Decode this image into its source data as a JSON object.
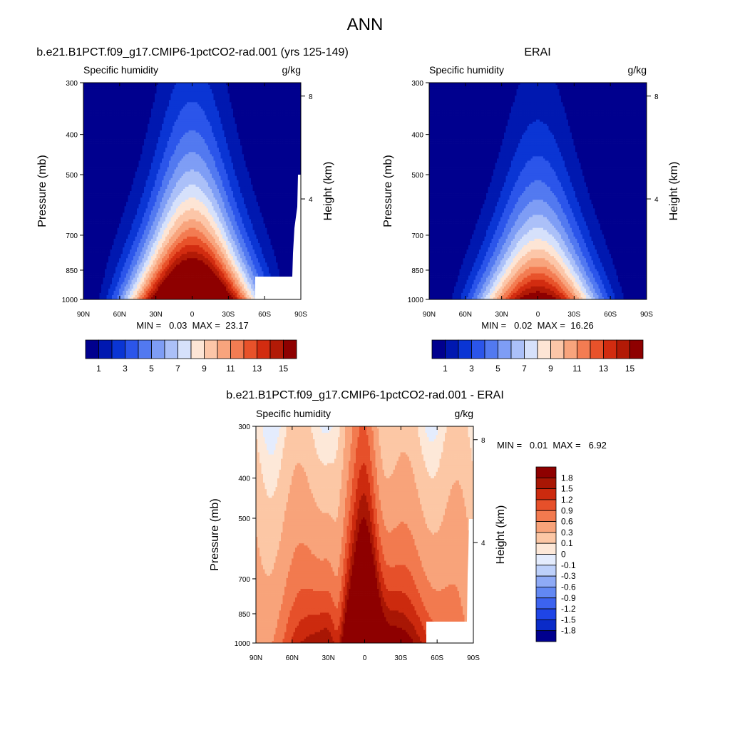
{
  "figure": {
    "title": "ANN"
  },
  "chart_data": [
    {
      "type": "heatmap",
      "panel": "model",
      "title": "b.e21.B1PCT.f09_g17.CMIP6-1pctCO2-rad.001 (yrs 125-149)",
      "left_label": "Specific humidity",
      "units": "g/kg",
      "ylabel": "Pressure (mb)",
      "ylabel_right": "Height (km)",
      "x_ticks": [
        "90N",
        "60N",
        "30N",
        "0",
        "30S",
        "60S",
        "90S"
      ],
      "y_ticks": [
        "300",
        "400",
        "500",
        "700",
        "850",
        "1000"
      ],
      "right_ticks": [
        "8",
        "4"
      ],
      "ylim": [
        1000,
        300
      ],
      "y_scale": "log",
      "xlim": [
        90,
        -90
      ],
      "min_label": "MIN =   0.03  MAX =  23.17",
      "min": 0.03,
      "max": 23.17,
      "levels": [
        1,
        2,
        3,
        4,
        5,
        6,
        7,
        8,
        9,
        10,
        11,
        12,
        13,
        14,
        15
      ],
      "colorbar_labels": [
        "1",
        "3",
        "5",
        "7",
        "9",
        "11",
        "13",
        "15"
      ],
      "colorbar_orientation": "horizontal"
    },
    {
      "type": "heatmap",
      "panel": "obs",
      "title": "ERAI",
      "left_label": "Specific humidity",
      "units": "g/kg",
      "ylabel": "Pressure (mb)",
      "ylabel_right": "Height (km)",
      "x_ticks": [
        "90N",
        "60N",
        "30N",
        "0",
        "30S",
        "60S",
        "90S"
      ],
      "y_ticks": [
        "300",
        "400",
        "500",
        "700",
        "850",
        "1000"
      ],
      "right_ticks": [
        "8",
        "4"
      ],
      "ylim": [
        1000,
        300
      ],
      "y_scale": "log",
      "xlim": [
        90,
        -90
      ],
      "min_label": "MIN =   0.02  MAX =  16.26",
      "min": 0.02,
      "max": 16.26,
      "levels": [
        1,
        2,
        3,
        4,
        5,
        6,
        7,
        8,
        9,
        10,
        11,
        12,
        13,
        14,
        15
      ],
      "colorbar_labels": [
        "1",
        "3",
        "5",
        "7",
        "9",
        "11",
        "13",
        "15"
      ],
      "colorbar_orientation": "horizontal"
    },
    {
      "type": "heatmap",
      "panel": "diff",
      "title": "b.e21.B1PCT.f09_g17.CMIP6-1pctCO2-rad.001 - ERAI",
      "left_label": "Specific humidity",
      "units": "g/kg",
      "ylabel": "Pressure (mb)",
      "ylabel_right": "Height (km)",
      "x_ticks": [
        "90N",
        "60N",
        "30N",
        "0",
        "30S",
        "60S",
        "90S"
      ],
      "y_ticks": [
        "300",
        "400",
        "500",
        "700",
        "850",
        "1000"
      ],
      "right_ticks": [
        "8",
        "4"
      ],
      "ylim": [
        1000,
        300
      ],
      "y_scale": "log",
      "xlim": [
        90,
        -90
      ],
      "min_label": "MIN =   0.01  MAX =   6.92",
      "min": 0.01,
      "max": 6.92,
      "levels": [
        -1.8,
        -1.5,
        -1.2,
        -0.9,
        -0.6,
        -0.3,
        -0.1,
        0,
        0.1,
        0.3,
        0.6,
        0.9,
        1.2,
        1.5,
        1.8
      ],
      "colorbar_labels": [
        "1.8",
        "1.5",
        "1.2",
        "0.9",
        "0.6",
        "0.3",
        "0.1",
        "0",
        "-0.1",
        "-0.3",
        "-0.6",
        "-0.9",
        "-1.2",
        "-1.5",
        "-1.8"
      ],
      "colorbar_orientation": "vertical"
    }
  ],
  "colors": {
    "sequential": [
      "#00008e",
      "#0018b0",
      "#0a35d4",
      "#2b55ea",
      "#5279f0",
      "#7e9df5",
      "#abc0f8",
      "#d6e1fb",
      "#fde5d5",
      "#fcc6a8",
      "#f8a47d",
      "#f37c52",
      "#e8522a",
      "#d22c10",
      "#b21a06",
      "#8e0000"
    ],
    "diverging": [
      "#00008e",
      "#0a2bc8",
      "#1f45e6",
      "#3c63ef",
      "#6288f3",
      "#8eaaf6",
      "#bdd0fa",
      "#e4ecfd",
      "#fde8d8",
      "#fcc7a5",
      "#f8a37a",
      "#f27a4f",
      "#e6502a",
      "#cc2a0e",
      "#a81604",
      "#8e0000"
    ]
  }
}
